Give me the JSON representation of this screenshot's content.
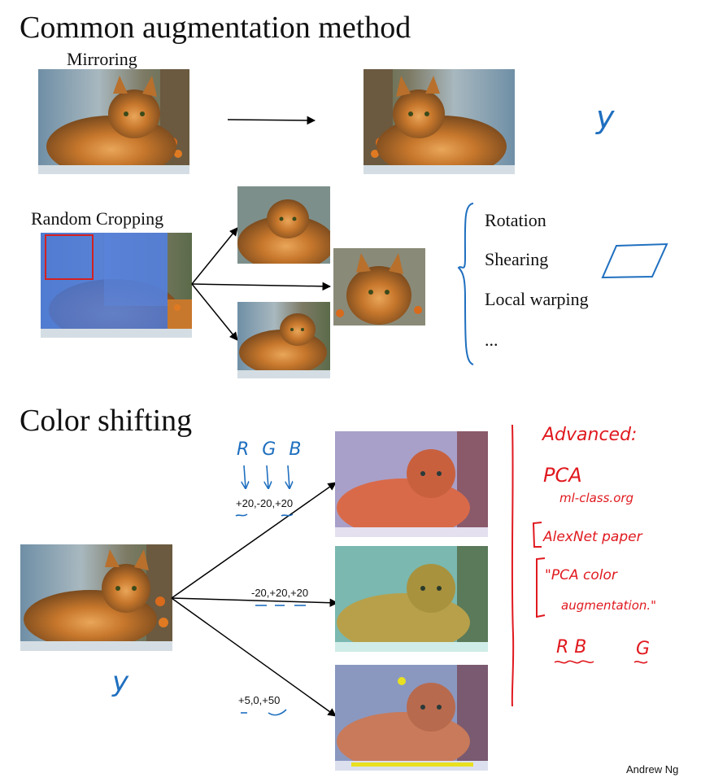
{
  "slide": {
    "title": "Common augmentation method",
    "section2_title": "Color shifting",
    "author": "Andrew Ng"
  },
  "mirroring": {
    "label": "Mirroring",
    "y_note": "y"
  },
  "cropping": {
    "label": "Random Cropping"
  },
  "augmentations": [
    "Rotation",
    "Shearing",
    "Local warping",
    "..."
  ],
  "color_shift": {
    "rgb_header": [
      "R",
      "G",
      "B"
    ],
    "shifts": [
      "+20,-20,+20",
      "-20,+20,+20",
      "+5,0,+50"
    ],
    "y_note": "y"
  },
  "advanced_notes": {
    "line1": "Advanced:",
    "line2": "PCA",
    "line3": "ml-class.org",
    "line4": "AlexNet paper",
    "line5": "\"PCA color",
    "line6": "augmentation.\"",
    "line7_a": "R B",
    "line7_b": "G"
  },
  "colors": {
    "annotation_blue": "#1f6fbf",
    "annotation_red": "#e0191f",
    "crop_box": "#d42020",
    "crop_overlay": "#4a78d8"
  }
}
